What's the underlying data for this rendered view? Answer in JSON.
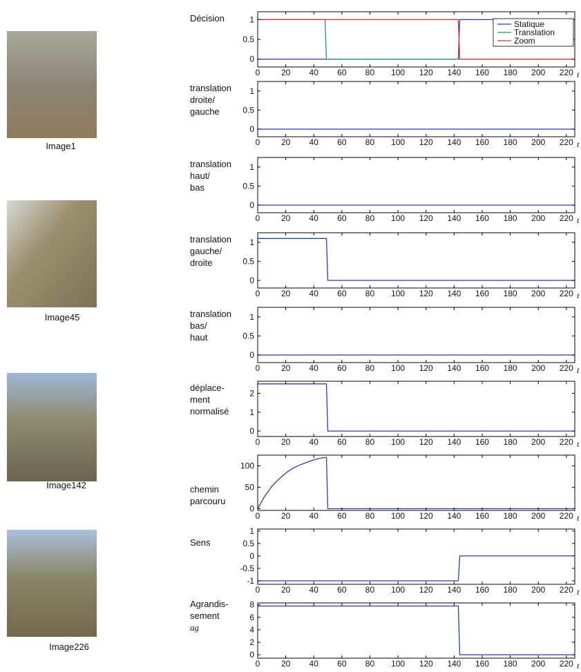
{
  "images": [
    {
      "caption": "Image1"
    },
    {
      "caption": "Image45"
    },
    {
      "caption": "Image142"
    },
    {
      "caption": "Image226"
    }
  ],
  "chart_data": [
    {
      "type": "line",
      "label": [
        "Décision"
      ],
      "x_label": "t",
      "xlim": [
        0,
        226
      ],
      "xticks": [
        0,
        20,
        40,
        60,
        80,
        100,
        120,
        140,
        160,
        180,
        200,
        220
      ],
      "ylim": [
        -0.2,
        1.2
      ],
      "yticks": [
        0,
        0.5,
        1
      ],
      "legend": "upper right",
      "series": [
        {
          "name": "Statique",
          "color": "#2a3fa0",
          "x": [
            0,
            143,
            144,
            226
          ],
          "values": [
            0,
            0,
            1,
            1
          ]
        },
        {
          "name": "Translation",
          "color": "#1a9a60",
          "x": [
            0,
            48,
            49,
            226
          ],
          "values": [
            1,
            1,
            0,
            0
          ]
        },
        {
          "name": "Zoom",
          "color": "#d03030",
          "x": [
            0,
            143,
            144,
            226
          ],
          "values": [
            1,
            1,
            0,
            0
          ]
        }
      ]
    },
    {
      "type": "line",
      "label": [
        "translation",
        "droite/",
        "gauche"
      ],
      "x_label": "t",
      "xlim": [
        0,
        226
      ],
      "xticks": [
        0,
        20,
        40,
        60,
        80,
        100,
        120,
        140,
        160,
        180,
        200,
        220
      ],
      "ylim": [
        -0.2,
        1.25
      ],
      "yticks": [
        0,
        0.5,
        1
      ],
      "series": [
        {
          "color": "#2a3fa0",
          "x": [
            0,
            226
          ],
          "values": [
            0,
            0
          ]
        }
      ]
    },
    {
      "type": "line",
      "label": [
        "translation",
        "haut/",
        "bas"
      ],
      "x_label": "t",
      "xlim": [
        0,
        226
      ],
      "xticks": [
        0,
        20,
        40,
        60,
        80,
        100,
        120,
        140,
        160,
        180,
        200,
        220
      ],
      "ylim": [
        -0.2,
        1.25
      ],
      "yticks": [
        0,
        0.5,
        1
      ],
      "series": [
        {
          "color": "#2a3fa0",
          "x": [
            0,
            226
          ],
          "values": [
            0,
            0
          ]
        }
      ]
    },
    {
      "type": "line",
      "label": [
        "translation",
        "gauche/",
        "droite"
      ],
      "x_label": "t",
      "xlim": [
        0,
        226
      ],
      "xticks": [
        0,
        20,
        40,
        60,
        80,
        100,
        120,
        140,
        160,
        180,
        200,
        220
      ],
      "ylim": [
        -0.2,
        1.25
      ],
      "yticks": [
        0,
        0.5,
        1
      ],
      "series": [
        {
          "color": "#2a3fa0",
          "x": [
            0,
            49,
            50,
            226
          ],
          "values": [
            1.1,
            1.1,
            0,
            0
          ]
        }
      ]
    },
    {
      "type": "line",
      "label": [
        "translation",
        "bas/",
        "haut"
      ],
      "x_label": "t",
      "xlim": [
        0,
        226
      ],
      "xticks": [
        0,
        20,
        40,
        60,
        80,
        100,
        120,
        140,
        160,
        180,
        200,
        220
      ],
      "ylim": [
        -0.2,
        1.25
      ],
      "yticks": [
        0,
        0.5,
        1
      ],
      "series": [
        {
          "color": "#2a3fa0",
          "x": [
            0,
            226
          ],
          "values": [
            0,
            0
          ]
        }
      ]
    },
    {
      "type": "line",
      "label": [
        "déplace-",
        "ment",
        "normalisé"
      ],
      "x_label": "t",
      "xlim": [
        0,
        226
      ],
      "xticks": [
        0,
        20,
        40,
        60,
        80,
        100,
        120,
        140,
        160,
        180,
        200,
        220
      ],
      "ylim": [
        -0.29,
        2.64
      ],
      "yticks": [
        0,
        1,
        2
      ],
      "series": [
        {
          "color": "#2a3fa0",
          "x": [
            0,
            49,
            50,
            226
          ],
          "values": [
            2.5,
            2.5,
            0,
            0
          ]
        }
      ]
    },
    {
      "type": "line",
      "label": [
        "chemin",
        "parcouru"
      ],
      "x_label": "t",
      "xlim": [
        0,
        226
      ],
      "xticks": [
        0,
        20,
        40,
        60,
        80,
        100,
        120,
        140,
        160,
        180,
        200,
        220
      ],
      "ylim": [
        -4,
        125
      ],
      "yticks": [
        0,
        50,
        100
      ],
      "series": [
        {
          "color": "#2a3fa0",
          "x": [
            0,
            5,
            10,
            15,
            20,
            25,
            30,
            35,
            40,
            45,
            49,
            50,
            226
          ],
          "values": [
            0,
            29,
            52,
            69,
            83,
            94,
            102,
            108,
            114,
            118,
            120,
            0,
            0
          ]
        }
      ]
    },
    {
      "type": "line",
      "label": [
        "Sens"
      ],
      "x_label": "t",
      "xlim": [
        0,
        226
      ],
      "xticks": [
        0,
        20,
        40,
        60,
        80,
        100,
        120,
        140,
        160,
        180,
        200,
        220
      ],
      "ylim": [
        -1.14,
        1.08
      ],
      "yticks": [
        -1,
        -0.5,
        0,
        0.5,
        1
      ],
      "series": [
        {
          "color": "#2a3fa0",
          "x": [
            0,
            143,
            144,
            226
          ],
          "values": [
            -1,
            -1,
            0,
            0
          ]
        }
      ]
    },
    {
      "type": "line",
      "label": [
        "Agrandis-",
        "sement",
        "ag"
      ],
      "x_label": "t",
      "xlim": [
        0,
        226
      ],
      "xticks": [
        0,
        20,
        40,
        60,
        80,
        100,
        120,
        140,
        160,
        180,
        200,
        220
      ],
      "ylim": [
        -0.55,
        8.3
      ],
      "yticks": [
        0,
        2,
        4,
        6,
        8
      ],
      "series": [
        {
          "color": "#2a3fa0",
          "x": [
            0,
            143,
            144,
            226
          ],
          "values": [
            7.8,
            7.8,
            0,
            0
          ]
        }
      ]
    }
  ]
}
